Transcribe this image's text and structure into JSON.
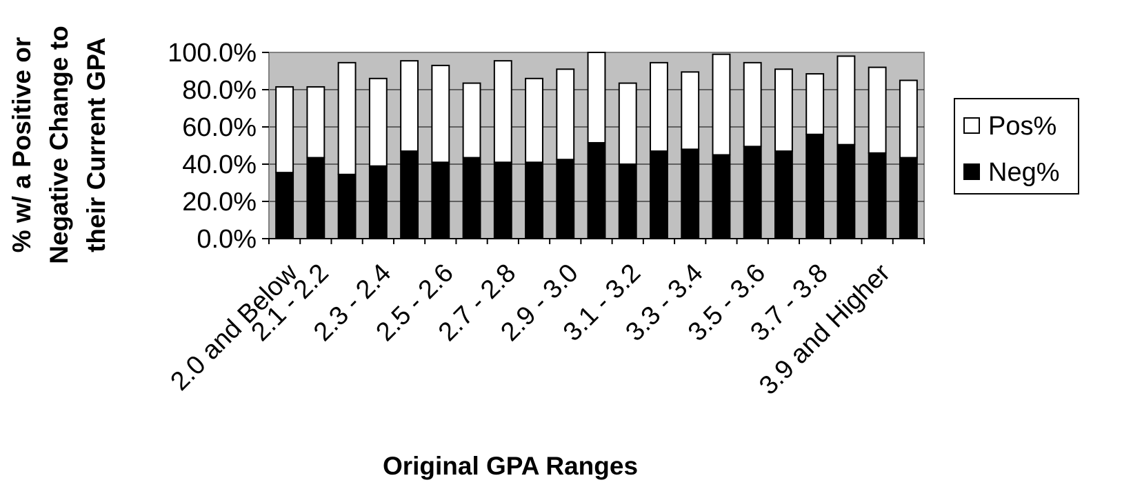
{
  "chart_data": {
    "type": "bar",
    "stacked": true,
    "categories": [
      "2.0 and Below",
      "2.1 - 2.2",
      "",
      "2.3 - 2.4",
      "",
      "2.5 - 2.6",
      "",
      "2.7 - 2.8",
      "",
      "2.9 - 3.0",
      "",
      "3.1 - 3.2",
      "",
      "3.3 - 3.4",
      "",
      "3.5 - 3.6",
      "",
      "3.7 - 3.8",
      "",
      "3.9 and Higher",
      ""
    ],
    "series": [
      {
        "name": "Neg%",
        "color": "#000000",
        "values": [
          35.5,
          43.5,
          34.5,
          39,
          47,
          41,
          43.5,
          41,
          41,
          42.5,
          51.5,
          40,
          47,
          48,
          45,
          49.5,
          47,
          56,
          50.5,
          46,
          43.5
        ]
      },
      {
        "name": "Pos%",
        "color": "#ffffff",
        "values": [
          46,
          38,
          60,
          47,
          48.5,
          52,
          40,
          54.5,
          45,
          48.5,
          48.5,
          43.5,
          47.5,
          41.5,
          54,
          45,
          44,
          32.5,
          47.5,
          46,
          41.5
        ]
      }
    ],
    "ylim": [
      0,
      100
    ],
    "yticks": [
      "0.0%",
      "20.0%",
      "40.0%",
      "60.0%",
      "80.0%",
      "100.0%"
    ],
    "ytick_values": [
      0,
      20,
      40,
      60,
      80,
      100
    ],
    "xlabel": "Original GPA Ranges",
    "ylabel": [
      "% w/ a Positive or",
      "Negative Change to",
      "their Current GPA"
    ],
    "grid": true,
    "plot_background": "#c0c0c0",
    "legend_position": "right",
    "legend": [
      {
        "label": "Pos%",
        "color": "#ffffff"
      },
      {
        "label": "Neg%",
        "color": "#000000"
      }
    ]
  }
}
